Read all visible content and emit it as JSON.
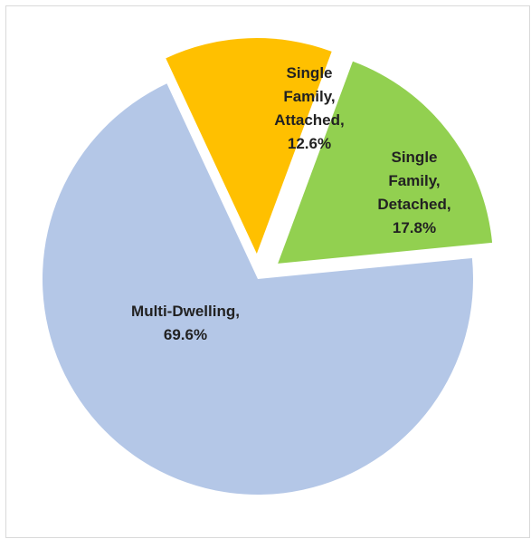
{
  "chart_data": {
    "type": "pie",
    "title": "",
    "start_angle_deg": -25,
    "slices": [
      {
        "name": "Single Family, Attached",
        "value": 12.6,
        "color": "#FFC000",
        "exploded": true,
        "label_lines": [
          "Single",
          "Family,",
          "Attached,",
          "12.6%"
        ]
      },
      {
        "name": "Single Family, Detached",
        "value": 17.8,
        "color": "#92D050",
        "exploded": true,
        "label_lines": [
          "Single",
          "Family,",
          "Detached,",
          "17.8%"
        ]
      },
      {
        "name": "Multi-Dwelling",
        "value": 69.6,
        "color": "#B4C7E7",
        "exploded": false,
        "label_lines": [
          "Multi-Dwelling,",
          "69.6%"
        ]
      }
    ],
    "legend": "none",
    "grid": false
  }
}
